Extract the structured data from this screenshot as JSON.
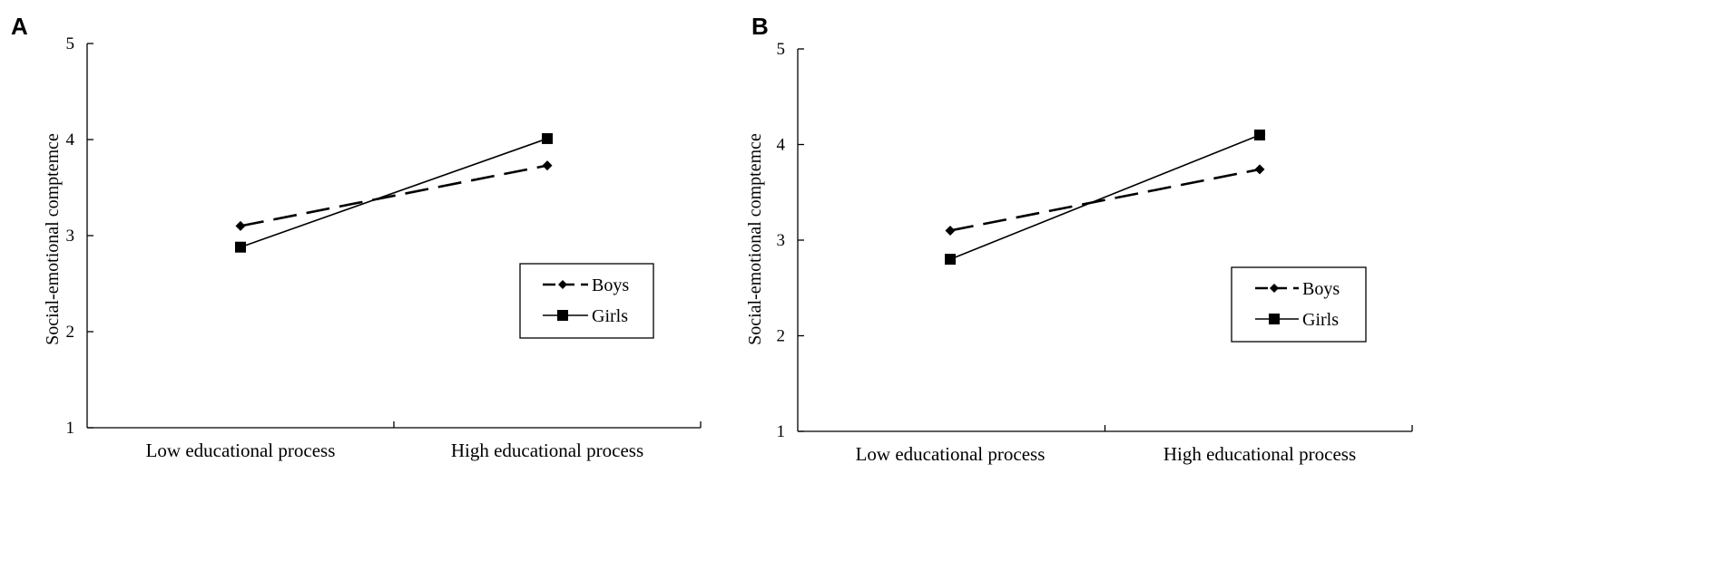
{
  "chart_data": [
    {
      "type": "line",
      "panel": "A",
      "categories": [
        "Low educational process",
        "High educational process"
      ],
      "series": [
        {
          "name": "Boys",
          "values": [
            3.1,
            3.73
          ],
          "line_style": "dashed",
          "marker": "diamond"
        },
        {
          "name": "Girls",
          "values": [
            2.88,
            4.01
          ],
          "line_style": "solid",
          "marker": "square"
        }
      ],
      "ylabel": "Social-emotional comptemce",
      "xlabel": "",
      "ylim": [
        1,
        5
      ],
      "yticks": [
        "1",
        "2",
        "3",
        "4",
        "5"
      ],
      "grid": false,
      "legend_position": "right"
    },
    {
      "type": "line",
      "panel": "B",
      "categories": [
        "Low educational process",
        "High educational process"
      ],
      "series": [
        {
          "name": "Boys",
          "values": [
            3.1,
            3.74
          ],
          "line_style": "dashed",
          "marker": "diamond"
        },
        {
          "name": "Girls",
          "values": [
            2.8,
            4.1
          ],
          "line_style": "solid",
          "marker": "square"
        }
      ],
      "ylabel": "Social-emotional comptemce",
      "xlabel": "",
      "ylim": [
        1,
        5
      ],
      "yticks": [
        "1",
        "2",
        "3",
        "4",
        "5"
      ],
      "grid": false,
      "legend_position": "right"
    }
  ]
}
